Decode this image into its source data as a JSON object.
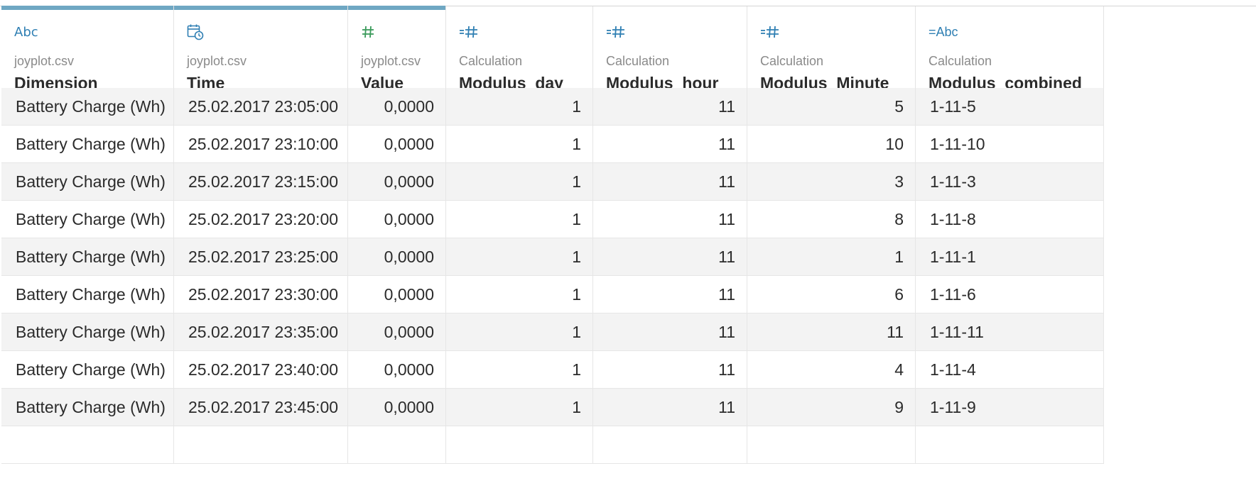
{
  "columns": [
    {
      "type_icon": "Abc",
      "icon_name": "string-type-icon",
      "source": "joyplot.csv",
      "name": "Dimension",
      "align": "left"
    },
    {
      "type_icon": "",
      "icon_name": "datetime-type-icon",
      "source": "joyplot.csv",
      "name": "Time",
      "align": "left"
    },
    {
      "type_icon": "#",
      "icon_name": "number-type-icon",
      "source": "joyplot.csv",
      "name": "Value",
      "align": "right"
    },
    {
      "type_icon": "=#",
      "icon_name": "calculated-number-icon",
      "source": "Calculation",
      "name": "Modulus_day",
      "align": "right"
    },
    {
      "type_icon": "=#",
      "icon_name": "calculated-number-icon",
      "source": "Calculation",
      "name": "Modulus_hour",
      "align": "right"
    },
    {
      "type_icon": "=#",
      "icon_name": "calculated-number-icon",
      "source": "Calculation",
      "name": "Modulus_Minute",
      "align": "right"
    },
    {
      "type_icon": "=Abc",
      "icon_name": "calculated-string-icon",
      "source": "Calculation",
      "name": "Modulus_combined",
      "align": "left"
    }
  ],
  "rows": [
    [
      "Battery Charge (Wh)",
      "25.02.2017 23:05:00",
      "0,0000",
      "1",
      "11",
      "5",
      "1-11-5"
    ],
    [
      "Battery Charge (Wh)",
      "25.02.2017 23:10:00",
      "0,0000",
      "1",
      "11",
      "10",
      "1-11-10"
    ],
    [
      "Battery Charge (Wh)",
      "25.02.2017 23:15:00",
      "0,0000",
      "1",
      "11",
      "3",
      "1-11-3"
    ],
    [
      "Battery Charge (Wh)",
      "25.02.2017 23:20:00",
      "0,0000",
      "1",
      "11",
      "8",
      "1-11-8"
    ],
    [
      "Battery Charge (Wh)",
      "25.02.2017 23:25:00",
      "0,0000",
      "1",
      "11",
      "1",
      "1-11-1"
    ],
    [
      "Battery Charge (Wh)",
      "25.02.2017 23:30:00",
      "0,0000",
      "1",
      "11",
      "6",
      "1-11-6"
    ],
    [
      "Battery Charge (Wh)",
      "25.02.2017 23:35:00",
      "0,0000",
      "1",
      "11",
      "11",
      "1-11-11"
    ],
    [
      "Battery Charge (Wh)",
      "25.02.2017 23:40:00",
      "0,0000",
      "1",
      "11",
      "4",
      "1-11-4"
    ],
    [
      "Battery Charge (Wh)",
      "25.02.2017 23:45:00",
      "0,0000",
      "1",
      "11",
      "9",
      "1-11-9"
    ],
    [
      "",
      "",
      "",
      "",
      "",
      "",
      ""
    ]
  ],
  "colors": {
    "source_bar": "#6fa7c3",
    "icon_blue": "#2f7fb3",
    "icon_green": "#3a9a5b",
    "row_shade": "#f3f3f3"
  }
}
